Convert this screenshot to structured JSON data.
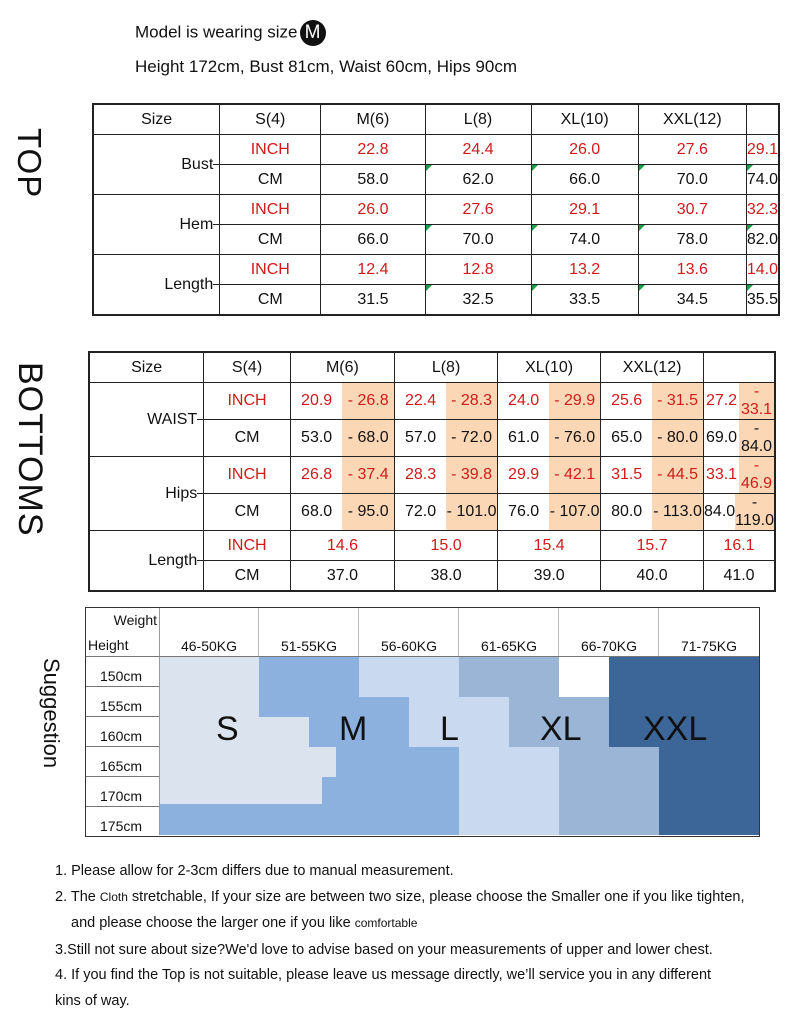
{
  "model": {
    "line1_prefix": "Model is wearing size",
    "size_badge": "M",
    "line2": "Height 172cm,  Bust 81cm, Waist 60cm, Hips 90cm"
  },
  "top": {
    "label": "TOP",
    "size_header": "Size",
    "sizes": [
      "S(4)",
      "M(6)",
      "L(8)",
      "XL(10)",
      "XXL(12)"
    ],
    "rows": [
      {
        "group": "Bust",
        "inch_label": "INCH",
        "cm_label": "CM",
        "inch": [
          "22.8",
          "24.4",
          "26.0",
          "27.6",
          "29.1"
        ],
        "cm": [
          "58.0",
          "62.0",
          "66.0",
          "70.0",
          "74.0"
        ]
      },
      {
        "group": "Hem",
        "inch_label": "INCH",
        "cm_label": "CM",
        "inch": [
          "26.0",
          "27.6",
          "29.1",
          "30.7",
          "32.3"
        ],
        "cm": [
          "66.0",
          "70.0",
          "74.0",
          "78.0",
          "82.0"
        ]
      },
      {
        "group": "Length",
        "inch_label": "INCH",
        "cm_label": "CM",
        "inch": [
          "12.4",
          "12.8",
          "13.2",
          "13.6",
          "14.0"
        ],
        "cm": [
          "31.5",
          "32.5",
          "33.5",
          "34.5",
          "35.5"
        ]
      }
    ]
  },
  "bottoms": {
    "label": "BOTTOMS",
    "size_header": "Size",
    "sizes": [
      "S(4)",
      "M(6)",
      "L(8)",
      "XL(10)",
      "XXL(12)"
    ],
    "waist": {
      "group": "WAIST",
      "inch_label": "INCH",
      "cm_label": "CM",
      "inch": [
        [
          "20.9",
          "- 26.8"
        ],
        [
          "22.4",
          "- 28.3"
        ],
        [
          "24.0",
          "- 29.9"
        ],
        [
          "25.6",
          "- 31.5"
        ],
        [
          "27.2",
          "- 33.1"
        ]
      ],
      "cm": [
        [
          "53.0",
          "- 68.0"
        ],
        [
          "57.0",
          "- 72.0"
        ],
        [
          "61.0",
          "- 76.0"
        ],
        [
          "65.0",
          "- 80.0"
        ],
        [
          "69.0",
          "- 84.0"
        ]
      ]
    },
    "hips": {
      "group": "Hips",
      "inch_label": "INCH",
      "cm_label": "CM",
      "inch": [
        [
          "26.8",
          "- 37.4"
        ],
        [
          "28.3",
          "- 39.8"
        ],
        [
          "29.9",
          "- 42.1"
        ],
        [
          "31.5",
          "- 44.5"
        ],
        [
          "33.1",
          "- 46.9"
        ]
      ],
      "cm": [
        [
          "68.0",
          "- 95.0"
        ],
        [
          "72.0",
          "- 101.0"
        ],
        [
          "76.0",
          "- 107.0"
        ],
        [
          "80.0",
          "- 113.0"
        ],
        [
          "84.0",
          "- 119.0"
        ]
      ]
    },
    "length": {
      "group": "Length",
      "inch_label": "INCH",
      "cm_label": "CM",
      "inch": [
        "14.6",
        "15.0",
        "15.4",
        "15.7",
        "16.1"
      ],
      "cm": [
        "37.0",
        "38.0",
        "39.0",
        "40.0",
        "41.0"
      ]
    }
  },
  "suggestion": {
    "label": "Suggestion",
    "weight_label": "Weight",
    "height_label": "Height",
    "weights": [
      "46-50KG",
      "51-55KG",
      "56-60KG",
      "61-65KG",
      "66-70KG",
      "71-75KG"
    ],
    "heights": [
      "150cm",
      "155cm",
      "160cm",
      "165cm",
      "170cm",
      "175cm"
    ],
    "size_labels": [
      "S",
      "M",
      "L",
      "XL",
      "XXL"
    ],
    "colors": {
      "S": "#dbe3ee",
      "M": "#8cb1de",
      "L": "#c8d9f0",
      "XL": "#9ab5d6",
      "XXL": "#3c6698"
    }
  },
  "notes": [
    "1. Please allow for 2-3cm differs due to manual measurement.",
    [
      "2. The ",
      "Cloth",
      " stretchable, If your size are between two size, please choose the Smaller one if you like tighten,"
    ],
    [
      "and please choose the larger one if you like ",
      "comfortable"
    ],
    "3.Still not sure about size?We'd love to advise based on your measurements of upper and lower chest.",
    "4. If you find the Top is not suitable, please leave us message directly, we’ll service you in any different",
    "kins of way."
  ]
}
